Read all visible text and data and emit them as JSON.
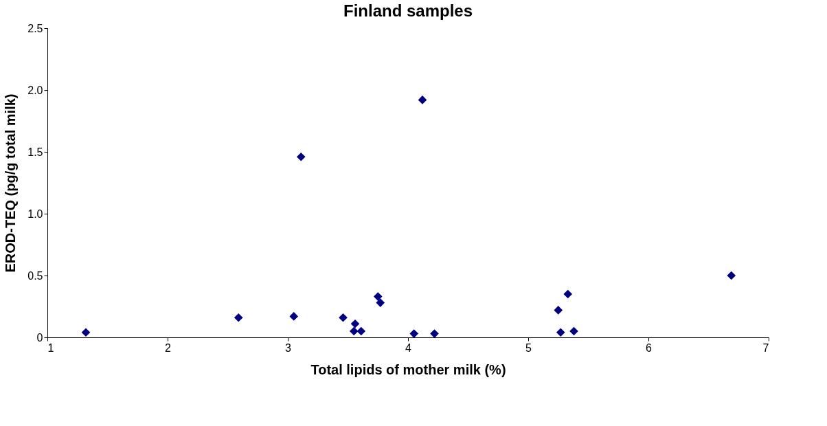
{
  "chart_data": {
    "type": "scatter",
    "title": "Finland samples",
    "xlabel": "Total lipids of mother milk (%)",
    "ylabel": "EROD-TEQ (pg/g total milk)",
    "x": [
      1.32,
      2.59,
      3.05,
      3.11,
      3.46,
      3.56,
      3.55,
      3.61,
      3.75,
      3.77,
      4.12,
      4.05,
      4.22,
      5.25,
      5.27,
      5.33,
      5.38,
      6.69
    ],
    "series": [
      {
        "color": "#000080",
        "values": [
          0.04,
          0.16,
          0.17,
          1.46,
          0.16,
          0.11,
          0.05,
          0.05,
          0.33,
          0.28,
          1.92,
          0.03,
          0.03,
          0.22,
          0.04,
          0.35,
          0.05,
          0.5
        ]
      }
    ],
    "xlim": [
      1,
      7
    ],
    "xticks": [
      1,
      2,
      3,
      4,
      5,
      6,
      7
    ],
    "ylim": [
      0,
      2.5
    ],
    "yticks": [
      0,
      {
        "value": 0.5,
        "label": "0.5"
      },
      {
        "value": 1,
        "label": "1.0"
      },
      {
        "value": 1.5,
        "label": "1.5"
      },
      {
        "value": 2,
        "label": "2.0"
      },
      {
        "value": 2.5,
        "label": "2.5"
      }
    ],
    "marker": "diamond",
    "grid": false,
    "legend": false
  }
}
